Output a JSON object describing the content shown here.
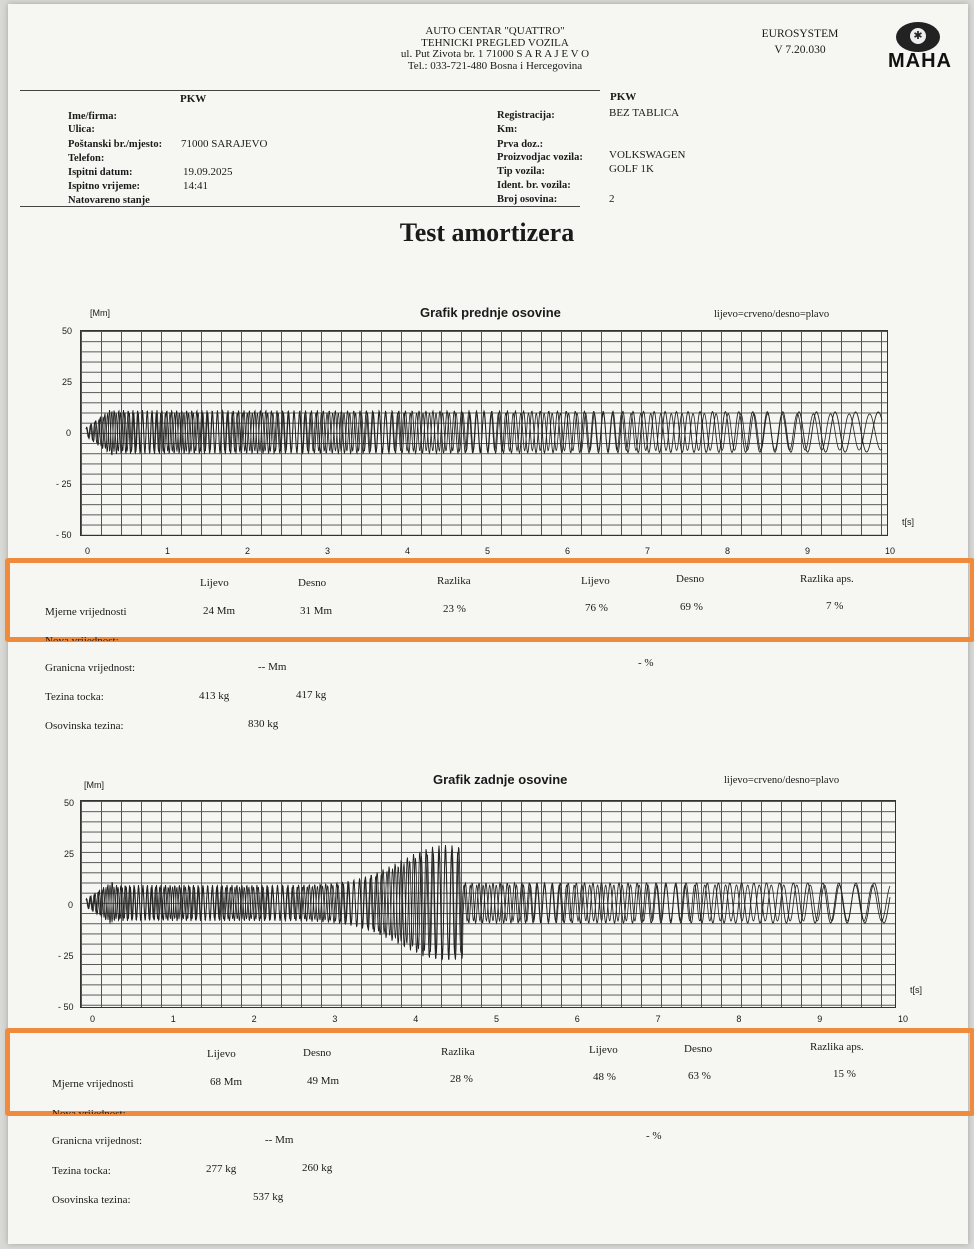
{
  "header": {
    "center_lines": [
      "AUTO CENTAR \"QUATTRO\"",
      "TEHNICKI PREGLED VOZILA",
      "ul. Put Zivota br. 1  71000 S A R A J E V O",
      "Tel.: 033-721-480  Bosna i Hercegovina"
    ],
    "system_name": "EUROSYSTEM",
    "system_version": "V 7.20.030",
    "logo_text": "MAHA",
    "left_type": "PKW",
    "right_type": "PKW"
  },
  "owner_fields": [
    {
      "label": "Ime/firma:",
      "value": ""
    },
    {
      "label": "Ulica:",
      "value": ""
    },
    {
      "label": "Poštanski br./mjesto:",
      "value": "71000 SARAJEVO"
    },
    {
      "label": "Telefon:",
      "value": ""
    },
    {
      "label": "Ispitni datum:",
      "value": "19.09.2025"
    },
    {
      "label": "Ispitno vrijeme:",
      "value": "14:41"
    },
    {
      "label": "Natovareno stanje",
      "value": ""
    }
  ],
  "vehicle_fields": [
    {
      "label": "Registracija:",
      "value": "BEZ TABLICA"
    },
    {
      "label": "Km:",
      "value": ""
    },
    {
      "label": "Prva doz.:",
      "value": ""
    },
    {
      "label": "Proizvodjac vozila:",
      "value": "VOLKSWAGEN"
    },
    {
      "label": "Tip vozila:",
      "value": "GOLF 1K"
    },
    {
      "label": "Ident. br. vozila:",
      "value": ""
    },
    {
      "label": "Broj osovina:",
      "value": "2"
    }
  ],
  "page_title": "Test amortizera",
  "charts": [
    {
      "title": "Grafik prednje osovine",
      "legend": "lijevo=crveno/desno=plavo",
      "y_unit": "[Mm]",
      "x_unit": "t[s]",
      "y_ticks": [
        "50",
        "25",
        "0",
        "- 25",
        "- 50"
      ],
      "x_ticks": [
        "0",
        "1",
        "2",
        "3",
        "4",
        "5",
        "6",
        "7",
        "8",
        "9",
        "10"
      ],
      "headers": [
        "Lijevo",
        "Desno",
        "Razlika",
        "Lijevo",
        "Desno",
        "Razlika aps."
      ],
      "measured_label": "Mjerne vrijednosti",
      "measured": [
        "24 Mm",
        "31 Mm",
        "23 %",
        "76 %",
        "69 %",
        "7 %"
      ],
      "new_label": "Nova vrijednost:",
      "new_value": "-- Mm",
      "limit_label": "Granicna vrijednost:",
      "limit_mm": "-- Mm",
      "limit_pct": "- %",
      "wheel_label": "Tezina tocka:",
      "wheel_left": "413  kg",
      "wheel_right": "417  kg",
      "axle_label": "Osovinska tezina:",
      "axle_value": "830 kg"
    },
    {
      "title": "Grafik zadnje osovine",
      "legend": "lijevo=crveno/desno=plavo",
      "y_unit": "[Mm]",
      "x_unit": "t[s]",
      "y_ticks": [
        "50",
        "25",
        "0",
        "- 25",
        "- 50"
      ],
      "x_ticks": [
        "0",
        "1",
        "2",
        "3",
        "4",
        "5",
        "6",
        "7",
        "8",
        "9",
        "10"
      ],
      "headers": [
        "Lijevo",
        "Desno",
        "Razlika",
        "Lijevo",
        "Desno",
        "Razlika aps."
      ],
      "measured_label": "Mjerne vrijednosti",
      "measured": [
        "68 Mm",
        "49 Mm",
        "28 %",
        "48 %",
        "63 %",
        "15 %"
      ],
      "new_label": "Nova vrijednost:",
      "new_value": "-- Mm",
      "limit_label": "Granicna vrijednost:",
      "limit_mm": "-- Mm",
      "limit_pct": "- %",
      "wheel_label": "Tezina tocka:",
      "wheel_left": "277  kg",
      "wheel_right": "260  kg",
      "axle_label": "Osovinska tezina:",
      "axle_value": "537 kg"
    }
  ],
  "colors": {
    "highlight": "#f08a3c",
    "ink": "#1a1a1a",
    "paper": "#f6f6f3"
  }
}
